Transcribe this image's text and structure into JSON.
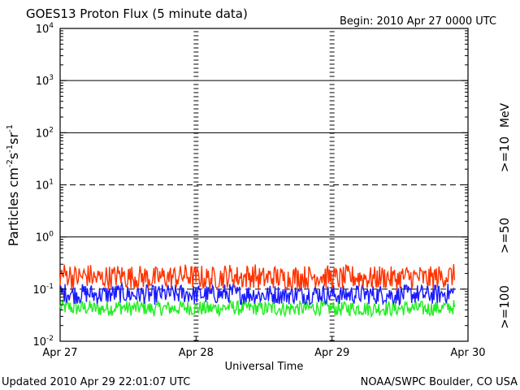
{
  "header": {
    "title": "GOES13 Proton Flux (5 minute data)",
    "begin": "Begin: 2010 Apr 27 0000 UTC"
  },
  "footer": {
    "updated": "Updated 2010 Apr 29 22:01:07 UTC",
    "credit": "NOAA/SWPC Boulder, CO USA"
  },
  "chart_data": {
    "type": "line",
    "title": "GOES13 Proton Flux (5 minute data)",
    "xlabel": "Universal Time",
    "ylabel_parts": {
      "base": "Particles cm",
      "e1": "-2",
      "s": "s",
      "e2": "-1",
      "sr": "sr",
      "e3": "-1"
    },
    "y_scale": "log",
    "ylim": [
      0.01,
      10000
    ],
    "xlim": [
      "2010-04-27",
      "2010-04-30"
    ],
    "x_ticks": [
      "Apr 27",
      "Apr 28",
      "Apr 29",
      "Apr 30"
    ],
    "y_ticks": [
      {
        "base": "10",
        "exp": "-2"
      },
      {
        "base": "10",
        "exp": "-1"
      },
      {
        "base": "10",
        "exp": "0"
      },
      {
        "base": "10",
        "exp": "1"
      },
      {
        "base": "10",
        "exp": "2"
      },
      {
        "base": "10",
        "exp": "3"
      },
      {
        "base": "10",
        "exp": "4"
      }
    ],
    "horizontal_lines": [
      {
        "value": 1000,
        "style": "solid"
      },
      {
        "value": 100,
        "style": "solid"
      },
      {
        "value": 10,
        "style": "dashed"
      },
      {
        "value": 1,
        "style": "solid"
      },
      {
        "value": 0.1,
        "style": "dashed"
      }
    ],
    "right_labels": {
      "unit": "MeV"
    },
    "series": [
      {
        "name": ">=10",
        "color": "#ff3300",
        "values": [
          0.19,
          0.17,
          0.18,
          0.16,
          0.17,
          0.18,
          0.17,
          0.17,
          0.16,
          0.17,
          0.17,
          0.18,
          0.17,
          0.16,
          0.17,
          0.18,
          0.17,
          0.18,
          0.16,
          0.17,
          0.16,
          0.17,
          0.17,
          0.18,
          0.17,
          0.16,
          0.17,
          0.17,
          0.16,
          0.17,
          0.16,
          0.17,
          0.17,
          0.16,
          0.17,
          0.18
        ]
      },
      {
        "name": ">=50",
        "color": "#1a1aff",
        "values": [
          0.085,
          0.08,
          0.082,
          0.078,
          0.08,
          0.083,
          0.079,
          0.08,
          0.077,
          0.081,
          0.08,
          0.082,
          0.079,
          0.078,
          0.08,
          0.083,
          0.079,
          0.08,
          0.077,
          0.079,
          0.078,
          0.08,
          0.079,
          0.082,
          0.08,
          0.077,
          0.079,
          0.08,
          0.078,
          0.08,
          0.077,
          0.079,
          0.08,
          0.078,
          0.079,
          0.084
        ]
      },
      {
        "name": ">=100",
        "color": "#22ee22",
        "values": [
          0.045,
          0.043,
          0.044,
          0.042,
          0.043,
          0.045,
          0.043,
          0.044,
          0.042,
          0.043,
          0.043,
          0.044,
          0.043,
          0.042,
          0.043,
          0.045,
          0.043,
          0.044,
          0.042,
          0.043,
          0.042,
          0.043,
          0.043,
          0.044,
          0.043,
          0.042,
          0.043,
          0.043,
          0.042,
          0.043,
          0.042,
          0.043,
          0.043,
          0.042,
          0.043,
          0.045
        ]
      }
    ]
  }
}
